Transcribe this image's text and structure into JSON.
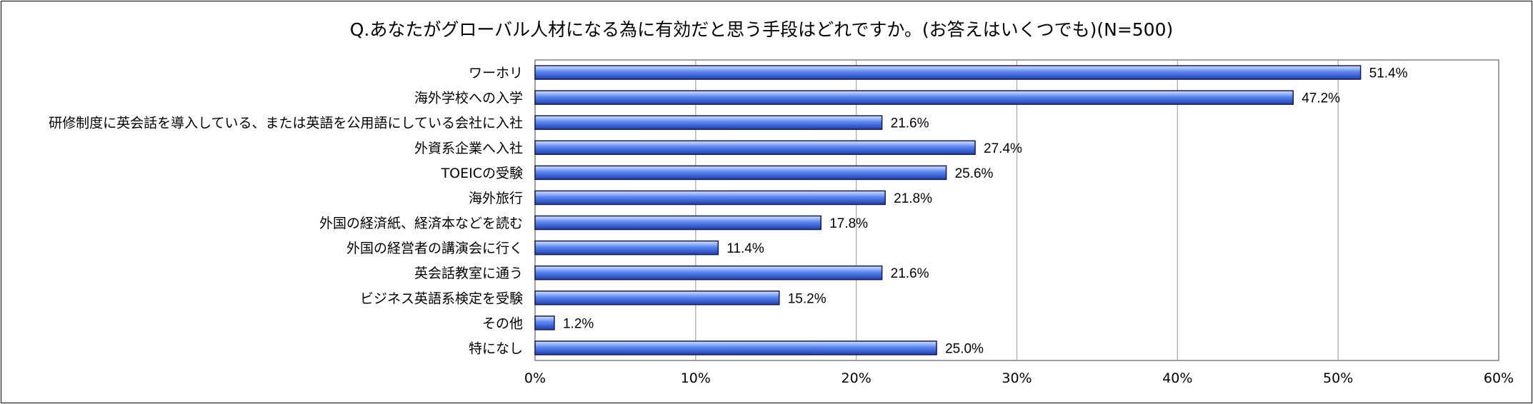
{
  "chart_data": {
    "type": "bar",
    "orientation": "horizontal",
    "title": "Q.あなたがグローバル人材になる為に有効だと思う手段はどれですか。(お答えはいくつでも)(N=500)",
    "categories": [
      "ワーホリ",
      "海外学校への入学",
      "研修制度に英会話を導入している、または英語を公用語にしている会社に入社",
      "外資系企業へ入社",
      "TOEICの受験",
      "海外旅行",
      "外国の経済紙、経済本などを読む",
      "外国の経営者の講演会に行く",
      "英会話教室に通う",
      "ビジネス英語系検定を受験",
      "その他",
      "特になし"
    ],
    "values": [
      51.4,
      47.2,
      21.6,
      27.4,
      25.6,
      21.8,
      17.8,
      11.4,
      21.6,
      15.2,
      1.2,
      25.0
    ],
    "value_labels": [
      "51.4%",
      "47.2%",
      "21.6%",
      "27.4%",
      "25.6%",
      "21.8%",
      "17.8%",
      "11.4%",
      "21.6%",
      "15.2%",
      "1.2%",
      "25.0%"
    ],
    "xlim": [
      0,
      60
    ],
    "x_ticks": [
      "0%",
      "10%",
      "20%",
      "30%",
      "40%",
      "50%",
      "60%"
    ],
    "grid": true,
    "legend": "none",
    "colors": {
      "bar_edge": "#1a1a4a",
      "bar_light": "#d6e4ff",
      "bar_mid": "#5a86f0",
      "bar_dark": "#1f3fb0",
      "grid": "#a6a6a6",
      "axis": "#808080"
    }
  }
}
